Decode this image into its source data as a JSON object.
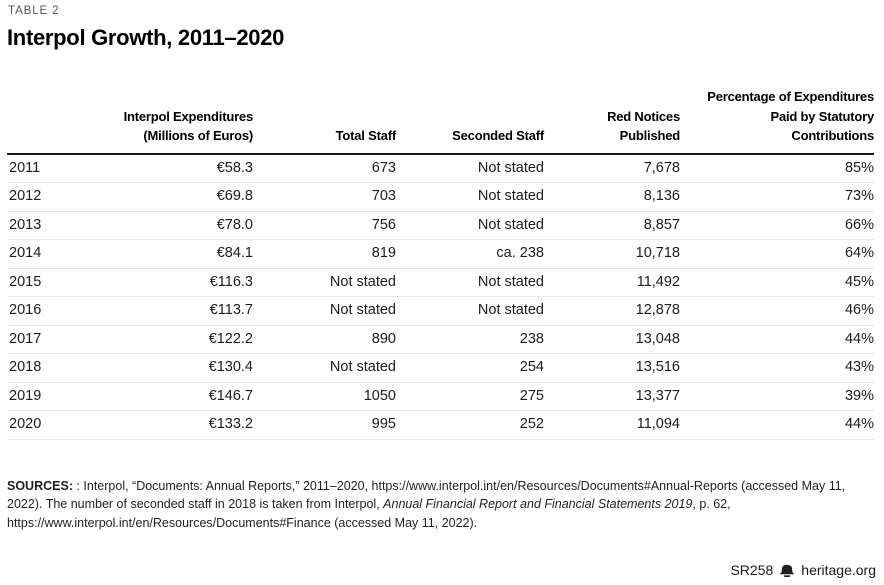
{
  "page": {
    "eyebrow": "TABLE 2",
    "title": "Interpol Growth, 2011–2020"
  },
  "table": {
    "columns": [
      "",
      "Interpol Expenditures (Millions of Euros)",
      "Total Staff",
      "Seconded Staff",
      "Red Notices Published",
      "Percentage of Expenditures Paid by Statutory Contributions"
    ],
    "rows": [
      [
        "2011",
        "€58.3",
        "673",
        "Not stated",
        "7,678",
        "85%"
      ],
      [
        "2012",
        "€69.8",
        "703",
        "Not stated",
        "8,136",
        "73%"
      ],
      [
        "2013",
        "€78.0",
        "756",
        "Not stated",
        "8,857",
        "66%"
      ],
      [
        "2014",
        "€84.1",
        "819",
        "ca. 238",
        "10,718",
        "64%"
      ],
      [
        "2015",
        "€116.3",
        "Not stated",
        "Not stated",
        "11,492",
        "45%"
      ],
      [
        "2016",
        "€113.7",
        "Not stated",
        "Not stated",
        "12,878",
        "46%"
      ],
      [
        "2017",
        "€122.2",
        "890",
        "238",
        "13,048",
        "44%"
      ],
      [
        "2018",
        "€130.4",
        "Not stated",
        "254",
        "13,516",
        "43%"
      ],
      [
        "2019",
        "€146.7",
        "1050",
        "275",
        "13,377",
        "39%"
      ],
      [
        "2020",
        "€133.2",
        "995",
        "252",
        "11,094",
        "44%"
      ]
    ]
  },
  "sources": {
    "label": "SOURCES:",
    "before_italic": " : Interpol, “Documents: Annual Reports,” 2011–2020, https://www.interpol.int/en/Resources/Documents#Annual-Reports (accessed May 11, 2022). The number of seconded staff in 2018 is taken from Interpol, ",
    "italic": "Annual Financial Report and Financial Statements 2019",
    "after_italic": ", p. 62, https://www.interpol.int/en/Resources/Documents#Finance (accessed May 11, 2022)."
  },
  "footer": {
    "report_id": "SR258",
    "site": "heritage.org",
    "logo": "liberty-bell-icon"
  },
  "colors": {
    "text": "#231f20",
    "eyebrow_gray": "#58595b",
    "header_rule": "#1b1b1b",
    "row_divider": "#e7e7e7"
  }
}
